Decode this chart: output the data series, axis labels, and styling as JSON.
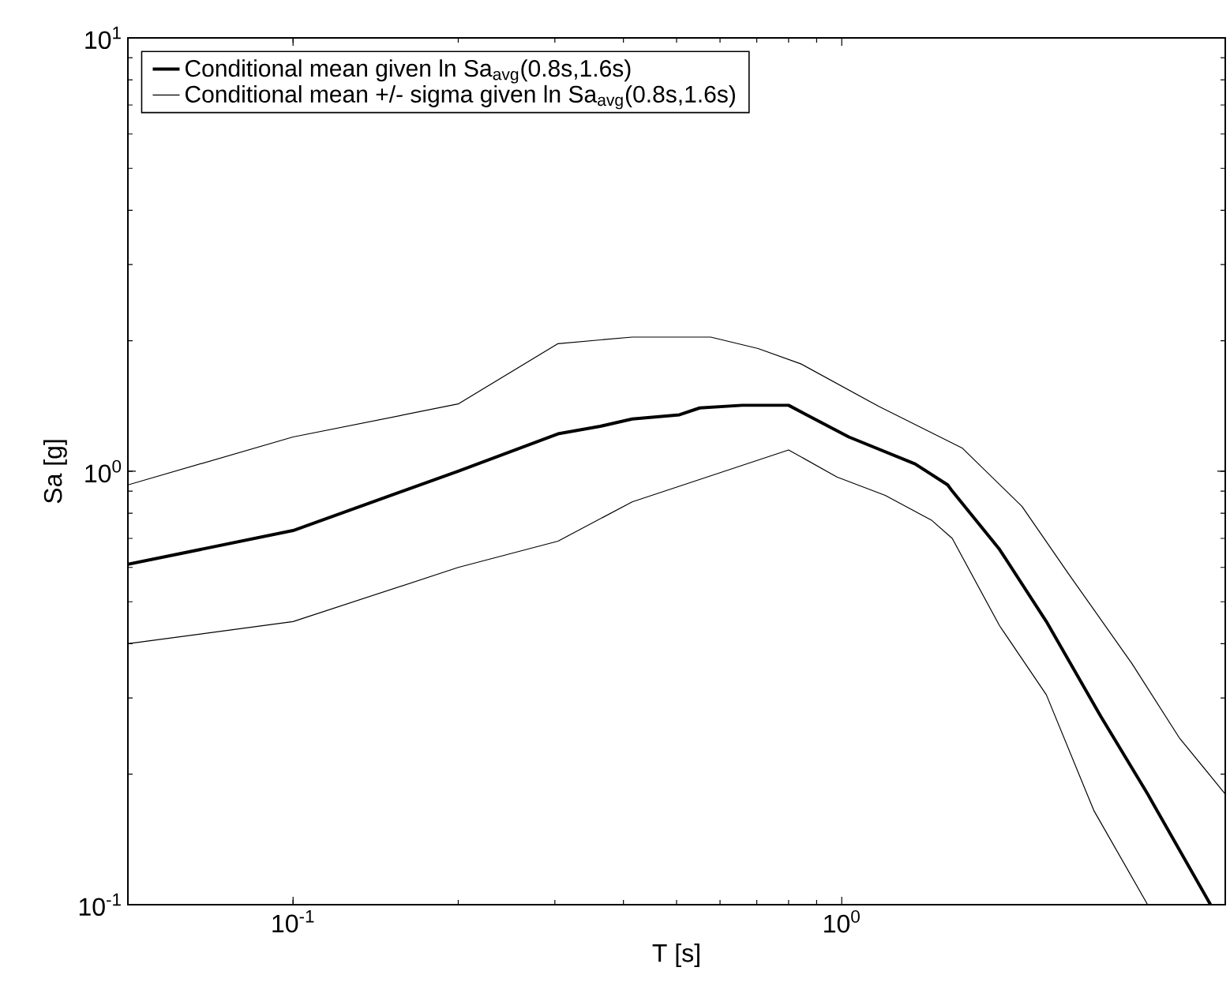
{
  "chart_data": {
    "type": "line",
    "xlabel": "T [s]",
    "ylabel": "Sa [g]",
    "log": "xy",
    "grid": false,
    "legend": "top left",
    "marker": "none",
    "line_style": "solid",
    "xlim": [
      0.05,
      5
    ],
    "ylim": [
      0.1,
      10
    ],
    "xticks": [
      {
        "value": 0.1,
        "label": "10$^{-1}$"
      },
      {
        "value": 1,
        "label": "10$^{0}$"
      }
    ],
    "yticks": [
      {
        "value": 0.1,
        "label": "10$^{-1}$"
      },
      {
        "value": 1,
        "label": "10$^{0}$"
      },
      {
        "value": 10,
        "label": "10$^{1}$"
      }
    ],
    "series": [
      {
        "name": "Conditional mean given ln Sa$_{avg}$(0.8s,1.6s)",
        "color": "#000000",
        "x": [
          0.05,
          0.1,
          0.2,
          0.304,
          0.363,
          0.415,
          0.506,
          0.551,
          0.659,
          0.8,
          1.03,
          1.36,
          1.56,
          1.59,
          1.94,
          2.36,
          2.96,
          3.61,
          4.7
        ],
        "values": [
          0.61,
          0.73,
          1.0,
          1.22,
          1.27,
          1.32,
          1.35,
          1.4,
          1.42,
          1.42,
          1.2,
          1.04,
          0.93,
          0.9,
          0.66,
          0.45,
          0.273,
          0.18,
          0.1
        ]
      },
      {
        "name": "Conditional mean +/- sigma given ln Sa$_{avg}$(0.8s,1.6s)",
        "color": "#000000",
        "x": [
          0.05,
          0.1,
          0.2,
          0.304,
          0.415,
          0.577,
          0.704,
          0.842,
          1.17,
          1.66,
          2.13,
          2.59,
          3.38,
          4.12,
          5.0
        ],
        "values": [
          0.93,
          1.2,
          1.43,
          1.97,
          2.04,
          2.04,
          1.92,
          1.77,
          1.41,
          1.13,
          0.83,
          0.58,
          0.36,
          0.243,
          0.18
        ]
      },
      {
        "color": "#000000",
        "x": [
          0.05,
          0.1,
          0.2,
          0.304,
          0.415,
          0.8,
          0.98,
          1.2,
          1.46,
          1.59,
          1.94,
          2.36,
          2.88,
          3.61
        ],
        "values": [
          0.4,
          0.45,
          0.6,
          0.69,
          0.85,
          1.12,
          0.97,
          0.88,
          0.77,
          0.7,
          0.44,
          0.305,
          0.165,
          0.1
        ]
      }
    ]
  }
}
